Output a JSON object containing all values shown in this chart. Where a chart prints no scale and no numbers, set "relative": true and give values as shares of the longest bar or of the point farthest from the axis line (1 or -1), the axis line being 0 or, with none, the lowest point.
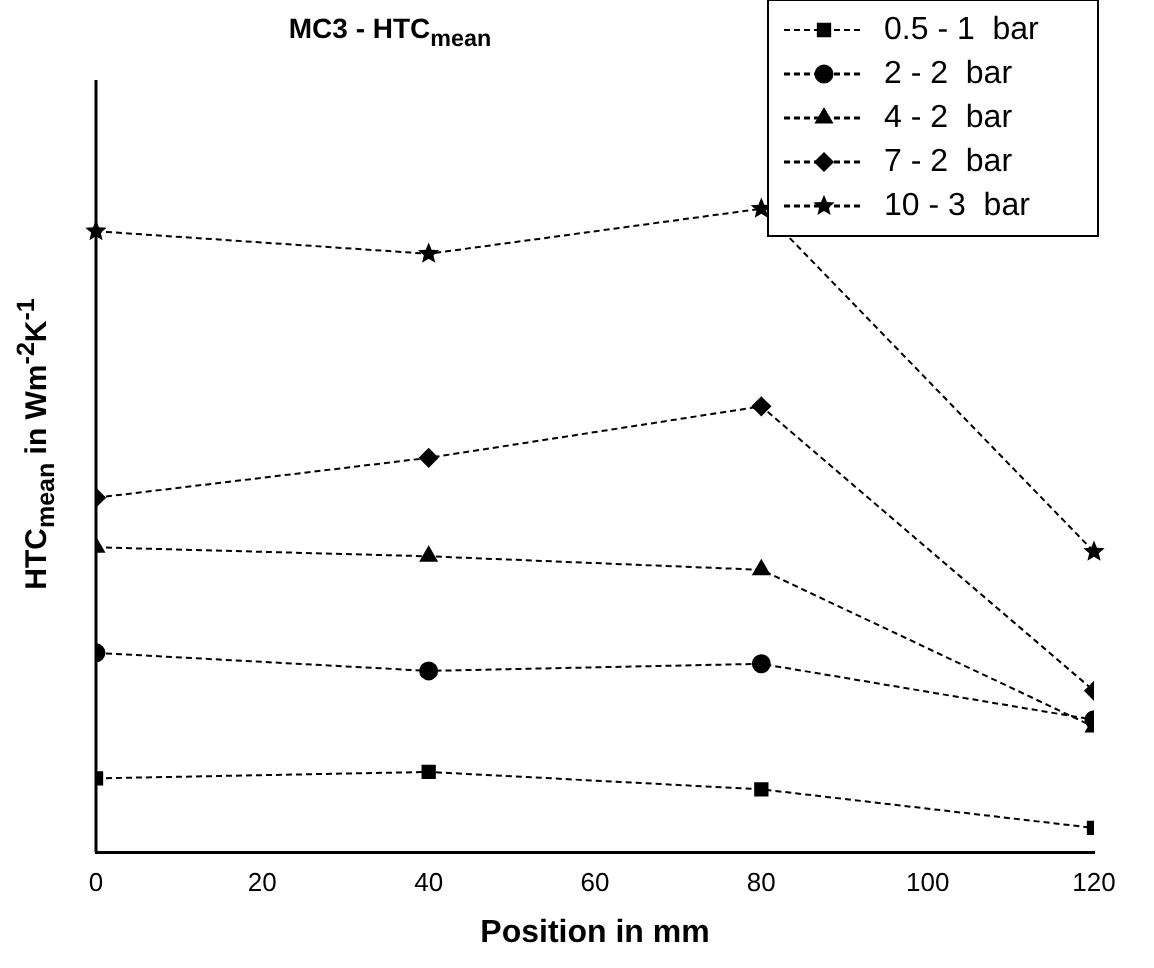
{
  "chart_data": {
    "type": "line",
    "title": "MC3 - HTC$_{mean}$",
    "xlabel": "Position in mm",
    "ylabel": "HTC$_{mean}$ in Wm$^{-2}$K$^{-1}$",
    "x": [
      0,
      40,
      80,
      120
    ],
    "xlim": [
      0,
      120
    ],
    "xticks": [
      0,
      20,
      40,
      60,
      80,
      100,
      120
    ],
    "relative": true,
    "legend": "top right",
    "line_style": "dashed",
    "grid": false,
    "series": [
      {
        "name": "0.5 - 1  bar",
        "color": "#000000",
        "marker": "square",
        "values": [
          0.115,
          0.125,
          0.098,
          0.038
        ]
      },
      {
        "name": "2 - 2  bar",
        "color": "#000000",
        "marker": "circle",
        "values": [
          0.31,
          0.282,
          0.293,
          0.206
        ]
      },
      {
        "name": "4 - 2  bar",
        "color": "#000000",
        "marker": "triangle",
        "values": [
          0.474,
          0.46,
          0.439,
          0.195
        ]
      },
      {
        "name": "7 - 2  bar",
        "color": "#000000",
        "marker": "diamond",
        "values": [
          0.551,
          0.613,
          0.693,
          0.251
        ]
      },
      {
        "name": "10 - 3  bar",
        "color": "#000000",
        "marker": "star",
        "values": [
          0.965,
          0.93,
          1,
          0.467
        ]
      }
    ]
  }
}
